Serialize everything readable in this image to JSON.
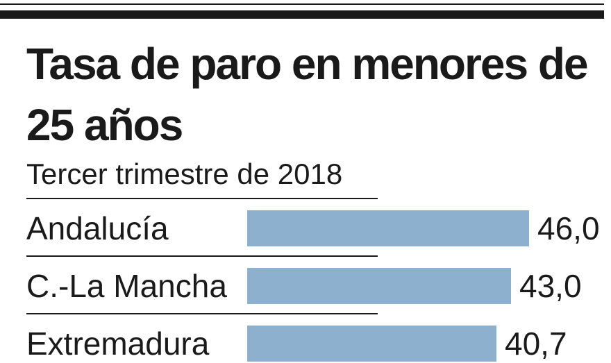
{
  "title": "Tasa de paro en menores de 25 años",
  "subtitle": "Tercer trimestre de 2018",
  "colors": {
    "bar": "#8db0cf",
    "text": "#1a1a1a",
    "rule": "#1a1a1a",
    "background": "#ffffff"
  },
  "chart_data": {
    "type": "bar",
    "orientation": "horizontal",
    "title": "Tasa de paro en menores de 25 años",
    "subtitle": "Tercer trimestre de 2018",
    "categories": [
      "Andalucía",
      "C.-La Mancha",
      "Extremadura"
    ],
    "values": [
      46.0,
      43.0,
      40.7
    ],
    "value_labels": [
      "46,0",
      "43,0",
      "40,7"
    ],
    "xlabel": "",
    "ylabel": "",
    "grid": false,
    "legend": "none"
  }
}
